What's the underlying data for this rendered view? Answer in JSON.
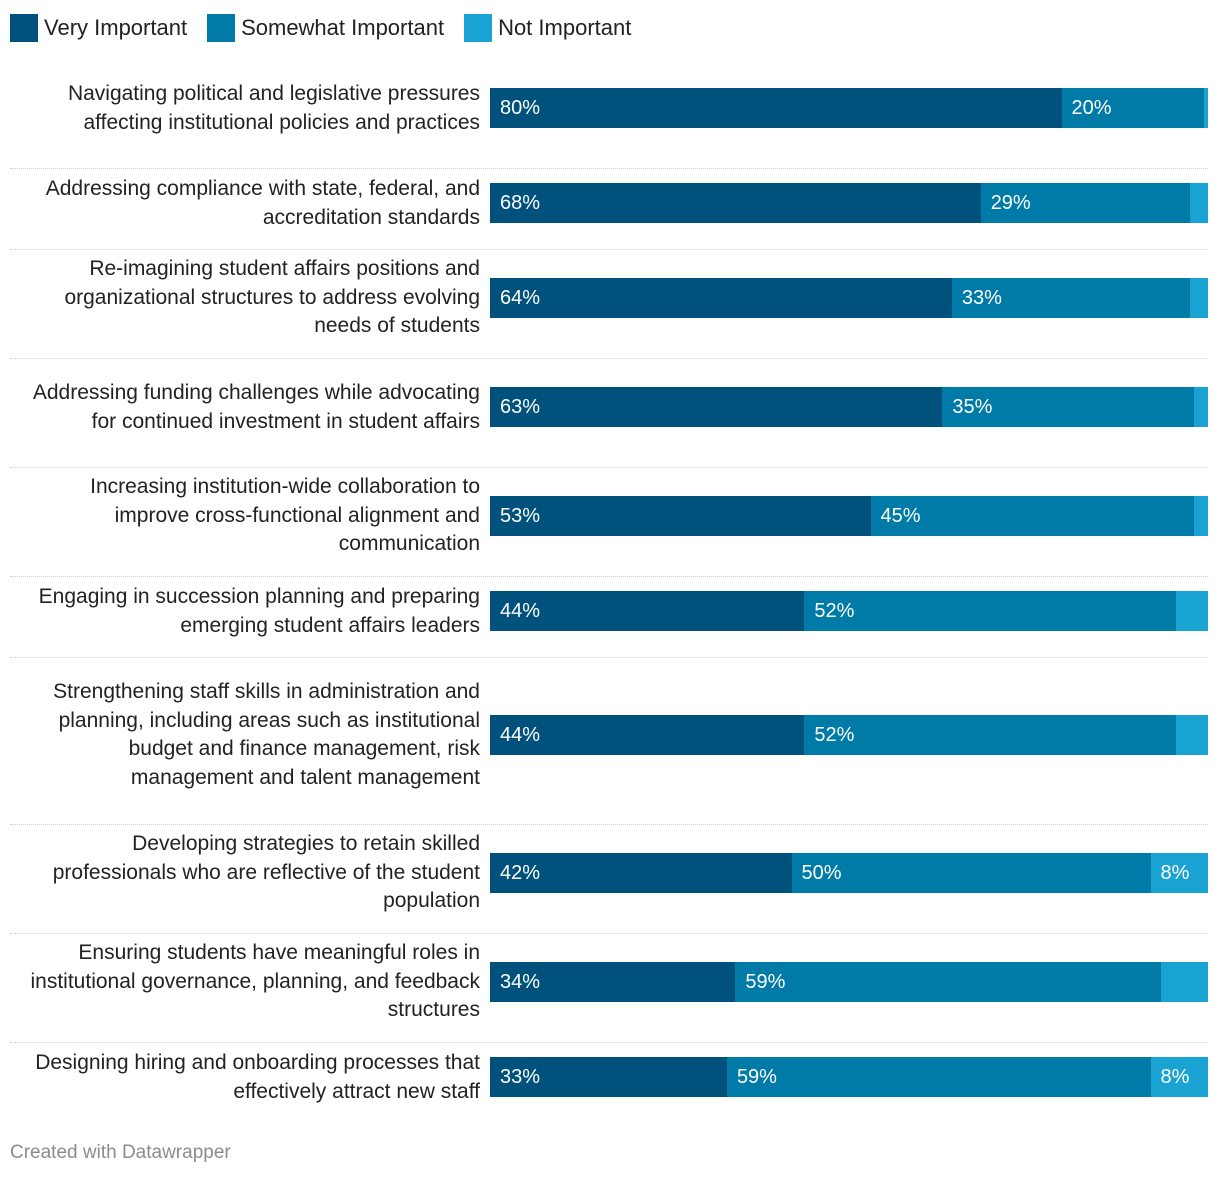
{
  "chart_data": {
    "type": "bar",
    "orientation": "horizontal",
    "stacked": true,
    "legend_position": "top-left",
    "xlim": [
      0,
      100
    ],
    "series": [
      {
        "name": "Very Important",
        "color": "#00527c",
        "values": [
          80,
          68,
          64,
          63,
          53,
          44,
          44,
          42,
          34,
          33
        ]
      },
      {
        "name": "Somewhat Important",
        "color": "#007aa7",
        "values": [
          20,
          29,
          33,
          35,
          45,
          52,
          52,
          50,
          59,
          59
        ]
      },
      {
        "name": "Not Important",
        "color": "#19a3d3",
        "values": [
          0.5,
          2.5,
          2.5,
          2,
          2,
          4.5,
          4.5,
          8,
          6.5,
          8
        ]
      }
    ],
    "segment_labels": [
      [
        "80%",
        "20%",
        ""
      ],
      [
        "68%",
        "29%",
        ""
      ],
      [
        "64%",
        "33%",
        ""
      ],
      [
        "63%",
        "35%",
        ""
      ],
      [
        "53%",
        "45%",
        ""
      ],
      [
        "44%",
        "52%",
        ""
      ],
      [
        "44%",
        "52%",
        ""
      ],
      [
        "42%",
        "50%",
        "8%"
      ],
      [
        "34%",
        "59%",
        ""
      ],
      [
        "33%",
        "59%",
        "8%"
      ]
    ],
    "categories": [
      "Navigating political and legislative pressures affecting institutional policies and practices",
      "Addressing compliance with state, federal, and accreditation standards",
      "Re-imagining student affairs positions and organizational structures to address evolving needs of students",
      "Addressing funding challenges while advocating for continued investment in student affairs",
      "Increasing institution-wide collaboration to improve cross-functional alignment and communication",
      "Engaging in succession planning and preparing emerging student affairs leaders",
      "Strengthening staff skills in administration and planning, including areas such as institutional budget and finance management, risk management and talent management",
      "Developing strategies to retain skilled professionals who are reflective of the student population",
      "Ensuring students have meaningful roles in institutional governance, planning, and feedback structures",
      "Designing hiring and onboarding processes that effectively attract new staff"
    ]
  },
  "footer": {
    "credit": "Created with Datawrapper"
  }
}
